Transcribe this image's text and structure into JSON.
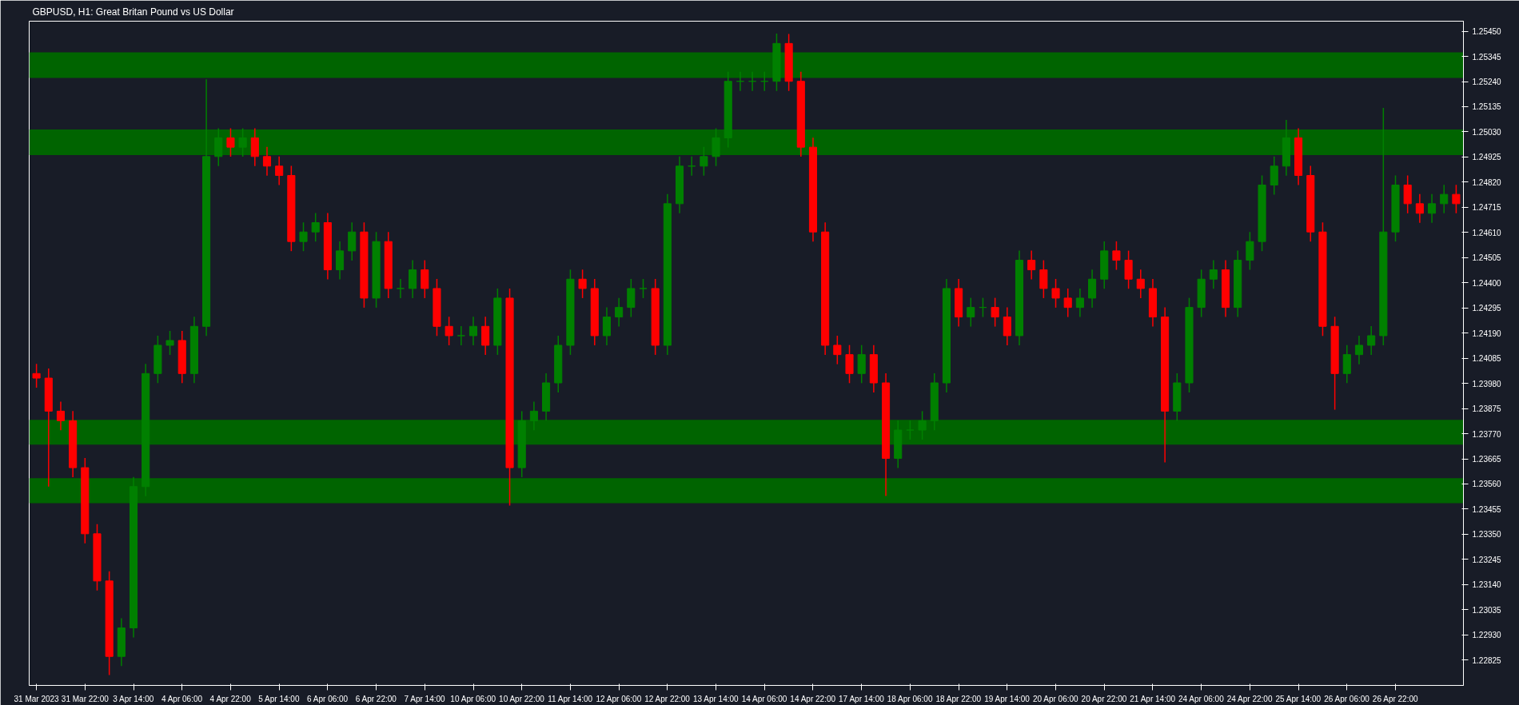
{
  "chart_data": {
    "type": "candlestick",
    "title": "GBPUSD, H1:  Great Britan Pound vs US Dollar",
    "categories": [
      "31 Mar 2023",
      null,
      null,
      null,
      "31 Mar 22:00",
      null,
      null,
      null,
      "3 Apr 14:00",
      null,
      null,
      null,
      "4 Apr 06:00",
      null,
      null,
      null,
      "4 Apr 22:00",
      null,
      null,
      null,
      "5 Apr 14:00",
      null,
      null,
      null,
      "6 Apr 06:00",
      null,
      null,
      null,
      "6 Apr 22:00",
      null,
      null,
      null,
      "7 Apr 14:00",
      null,
      null,
      null,
      "10 Apr 06:00",
      null,
      null,
      null,
      "10 Apr 22:00",
      null,
      null,
      null,
      "11 Apr 14:00",
      null,
      null,
      null,
      "12 Apr 06:00",
      null,
      null,
      null,
      "12 Apr 22:00",
      null,
      null,
      null,
      "13 Apr 14:00",
      null,
      null,
      null,
      "14 Apr 06:00",
      null,
      null,
      null,
      "14 Apr 22:00",
      null,
      null,
      null,
      "17 Apr 14:00",
      null,
      null,
      null,
      "18 Apr 06:00",
      null,
      null,
      null,
      "18 Apr 22:00",
      null,
      null,
      null,
      "19 Apr 14:00",
      null,
      null,
      null,
      "20 Apr 06:00",
      null,
      null,
      null,
      "20 Apr 22:00",
      null,
      null,
      null,
      "21 Apr 14:00",
      null,
      null,
      null,
      "24 Apr 06:00",
      null,
      null,
      null,
      "24 Apr 22:00",
      null,
      null,
      null,
      "25 Apr 14:00",
      null,
      null,
      null,
      "26 Apr 06:00",
      null,
      null,
      null,
      "26 Apr 22:00",
      null,
      null,
      null,
      null,
      null
    ],
    "ohlc": [
      [
        1.24021,
        1.24061,
        1.23962,
        1.24002
      ],
      [
        1.24002,
        1.24042,
        1.23549,
        1.23864
      ],
      [
        1.23864,
        1.23904,
        1.23784,
        1.23824
      ],
      [
        1.23824,
        1.23864,
        1.23588,
        1.23628
      ],
      [
        1.23628,
        1.23668,
        1.23312,
        1.23352
      ],
      [
        1.23352,
        1.23392,
        1.23115,
        1.23155
      ],
      [
        1.23155,
        1.23195,
        1.22762,
        1.2284
      ],
      [
        1.2284,
        1.22999,
        1.228,
        1.22959
      ],
      [
        1.22959,
        1.23589,
        1.22919,
        1.23549
      ],
      [
        1.23549,
        1.24061,
        1.23509,
        1.24021
      ],
      [
        1.24021,
        1.24179,
        1.23981,
        1.24139
      ],
      [
        1.24139,
        1.24199,
        1.24099,
        1.24159
      ],
      [
        1.24159,
        1.24199,
        1.23981,
        1.24021
      ],
      [
        1.24021,
        1.24258,
        1.23981,
        1.24218
      ],
      [
        1.24218,
        1.25249,
        1.24178,
        1.24927
      ],
      [
        1.24927,
        1.25045,
        1.24887,
        1.25005
      ],
      [
        1.25005,
        1.25045,
        1.24926,
        1.24966
      ],
      [
        1.24966,
        1.25045,
        1.24926,
        1.25005
      ],
      [
        1.25005,
        1.25045,
        1.24887,
        1.24927
      ],
      [
        1.24927,
        1.24967,
        1.24847,
        1.24887
      ],
      [
        1.24887,
        1.24927,
        1.24808,
        1.24848
      ],
      [
        1.24848,
        1.24888,
        1.24532,
        1.24572
      ],
      [
        1.24572,
        1.24652,
        1.24532,
        1.24612
      ],
      [
        1.24612,
        1.24691,
        1.24572,
        1.24651
      ],
      [
        1.24651,
        1.24691,
        1.24414,
        1.24454
      ],
      [
        1.24454,
        1.24573,
        1.24414,
        1.24533
      ],
      [
        1.24533,
        1.24652,
        1.24493,
        1.24612
      ],
      [
        1.24612,
        1.24652,
        1.24296,
        1.24336
      ],
      [
        1.24336,
        1.24612,
        1.24296,
        1.24572
      ],
      [
        1.24572,
        1.24612,
        1.24336,
        1.24376
      ],
      [
        1.24376,
        1.24416,
        1.24336,
        1.24376
      ],
      [
        1.24376,
        1.24494,
        1.24336,
        1.24454
      ],
      [
        1.24454,
        1.24494,
        1.24336,
        1.24376
      ],
      [
        1.24376,
        1.24416,
        1.24178,
        1.24218
      ],
      [
        1.24218,
        1.24258,
        1.24139,
        1.24179
      ],
      [
        1.24179,
        1.24219,
        1.24139,
        1.24179
      ],
      [
        1.24179,
        1.24258,
        1.24139,
        1.24218
      ],
      [
        1.24218,
        1.24258,
        1.24099,
        1.24139
      ],
      [
        1.24139,
        1.24376,
        1.24099,
        1.24336
      ],
      [
        1.24336,
        1.24376,
        1.2347,
        1.23628
      ],
      [
        1.23628,
        1.23864,
        1.23588,
        1.23824
      ],
      [
        1.23824,
        1.23904,
        1.23784,
        1.23864
      ],
      [
        1.23864,
        1.24022,
        1.23824,
        1.23982
      ],
      [
        1.23982,
        1.24179,
        1.23942,
        1.24139
      ],
      [
        1.24139,
        1.24455,
        1.24099,
        1.24415
      ],
      [
        1.24415,
        1.24455,
        1.24336,
        1.24376
      ],
      [
        1.24376,
        1.24416,
        1.24139,
        1.24179
      ],
      [
        1.24179,
        1.24297,
        1.24139,
        1.24257
      ],
      [
        1.24257,
        1.24337,
        1.24217,
        1.24297
      ],
      [
        1.24297,
        1.24416,
        1.24257,
        1.24376
      ],
      [
        1.24376,
        1.24416,
        1.24336,
        1.24376
      ],
      [
        1.24376,
        1.24416,
        1.24099,
        1.24139
      ],
      [
        1.24139,
        1.2477,
        1.24099,
        1.2473
      ],
      [
        1.2473,
        1.24927,
        1.2469,
        1.24887
      ],
      [
        1.24887,
        1.24927,
        1.24847,
        1.24887
      ],
      [
        1.24887,
        1.24967,
        1.24847,
        1.24927
      ],
      [
        1.24927,
        1.25045,
        1.24887,
        1.25005
      ],
      [
        1.25005,
        1.25281,
        1.24965,
        1.25241
      ],
      [
        1.25241,
        1.25281,
        1.25201,
        1.25241
      ],
      [
        1.25241,
        1.25281,
        1.25201,
        1.25241
      ],
      [
        1.25241,
        1.25281,
        1.25201,
        1.25241
      ],
      [
        1.25241,
        1.2544,
        1.25201,
        1.25399
      ],
      [
        1.25399,
        1.25439,
        1.25201,
        1.25241
      ],
      [
        1.25241,
        1.25281,
        1.24926,
        1.24966
      ],
      [
        1.24966,
        1.25006,
        1.24572,
        1.24612
      ],
      [
        1.24612,
        1.24652,
        1.24099,
        1.24139
      ],
      [
        1.24139,
        1.24179,
        1.2406,
        1.241
      ],
      [
        1.241,
        1.2414,
        1.23981,
        1.24021
      ],
      [
        1.24021,
        1.2414,
        1.23981,
        1.241
      ],
      [
        1.241,
        1.2414,
        1.23942,
        1.23982
      ],
      [
        1.23982,
        1.24022,
        1.2351,
        1.23667
      ],
      [
        1.23667,
        1.23825,
        1.23627,
        1.23785
      ],
      [
        1.23785,
        1.23825,
        1.23745,
        1.23785
      ],
      [
        1.23785,
        1.23864,
        1.23745,
        1.23824
      ],
      [
        1.23824,
        1.24022,
        1.23784,
        1.23982
      ],
      [
        1.23982,
        1.24416,
        1.23942,
        1.24376
      ],
      [
        1.24376,
        1.24416,
        1.24217,
        1.24257
      ],
      [
        1.24257,
        1.24337,
        1.24217,
        1.24297
      ],
      [
        1.24297,
        1.24337,
        1.24257,
        1.24297
      ],
      [
        1.24297,
        1.24337,
        1.24217,
        1.24257
      ],
      [
        1.24257,
        1.24297,
        1.24139,
        1.24179
      ],
      [
        1.24179,
        1.24534,
        1.24139,
        1.24494
      ],
      [
        1.24494,
        1.24534,
        1.24414,
        1.24454
      ],
      [
        1.24454,
        1.24494,
        1.24336,
        1.24376
      ],
      [
        1.24376,
        1.24416,
        1.24296,
        1.24336
      ],
      [
        1.24336,
        1.24376,
        1.24257,
        1.24297
      ],
      [
        1.24297,
        1.24376,
        1.24257,
        1.24336
      ],
      [
        1.24336,
        1.24455,
        1.24296,
        1.24415
      ],
      [
        1.24415,
        1.24573,
        1.24375,
        1.24533
      ],
      [
        1.24533,
        1.24573,
        1.24454,
        1.24494
      ],
      [
        1.24494,
        1.24534,
        1.24375,
        1.24415
      ],
      [
        1.24415,
        1.24455,
        1.24336,
        1.24376
      ],
      [
        1.24376,
        1.24416,
        1.24217,
        1.24257
      ],
      [
        1.24257,
        1.24297,
        1.2365,
        1.23864
      ],
      [
        1.23864,
        1.24022,
        1.23824,
        1.23982
      ],
      [
        1.23982,
        1.24337,
        1.23942,
        1.24297
      ],
      [
        1.24297,
        1.24455,
        1.24257,
        1.24415
      ],
      [
        1.24415,
        1.24494,
        1.24375,
        1.24454
      ],
      [
        1.24454,
        1.24494,
        1.24257,
        1.24297
      ],
      [
        1.24297,
        1.24534,
        1.24257,
        1.24494
      ],
      [
        1.24494,
        1.24612,
        1.24454,
        1.24572
      ],
      [
        1.24572,
        1.24848,
        1.24532,
        1.24808
      ],
      [
        1.24808,
        1.24927,
        1.24768,
        1.24887
      ],
      [
        1.24887,
        1.2508,
        1.24847,
        1.25005
      ],
      [
        1.25005,
        1.25045,
        1.24808,
        1.24848
      ],
      [
        1.24848,
        1.24888,
        1.24572,
        1.24612
      ],
      [
        1.24612,
        1.24652,
        1.24178,
        1.24218
      ],
      [
        1.24218,
        1.24258,
        1.2387,
        1.24021
      ],
      [
        1.24021,
        1.2414,
        1.23981,
        1.241
      ],
      [
        1.241,
        1.24179,
        1.2406,
        1.24139
      ],
      [
        1.24139,
        1.24219,
        1.24099,
        1.24179
      ],
      [
        1.24179,
        1.2513,
        1.24139,
        1.24612
      ],
      [
        1.24612,
        1.24848,
        1.24572,
        1.24808
      ],
      [
        1.24808,
        1.24848,
        1.2469,
        1.2473
      ],
      [
        1.2473,
        1.2477,
        1.2465,
        1.2469
      ],
      [
        1.2469,
        1.2477,
        1.2465,
        1.2473
      ],
      [
        1.2473,
        1.24809,
        1.2469,
        1.24769
      ],
      [
        1.24769,
        1.24809,
        1.2469,
        1.2473
      ]
    ],
    "colors": [
      "#ff0000",
      "#ff0000",
      "#ff0000",
      "#ff0000",
      "#ff0000",
      "#ff0000",
      "#ff0000",
      "#008000",
      "#008000",
      "#008000",
      "#008000",
      "#008000",
      "#ff0000",
      "#008000",
      "#008000",
      "#008000",
      "#ff0000",
      "#008000",
      "#ff0000",
      "#ff0000",
      "#ff0000",
      "#ff0000",
      "#008000",
      "#008000",
      "#ff0000",
      "#008000",
      "#008000",
      "#ff0000",
      "#008000",
      "#ff0000",
      "#008000",
      "#008000",
      "#ff0000",
      "#ff0000",
      "#ff0000",
      "#008000",
      "#008000",
      "#ff0000",
      "#008000",
      "#ff0000",
      "#008000",
      "#008000",
      "#008000",
      "#008000",
      "#008000",
      "#ff0000",
      "#ff0000",
      "#008000",
      "#008000",
      "#008000",
      "#008000",
      "#ff0000",
      "#008000",
      "#008000",
      "#008000",
      "#008000",
      "#008000",
      "#008000",
      "#008000",
      "#008000",
      "#008000",
      "#008000",
      "#ff0000",
      "#ff0000",
      "#ff0000",
      "#ff0000",
      "#ff0000",
      "#ff0000",
      "#008000",
      "#ff0000",
      "#ff0000",
      "#008000",
      "#008000",
      "#008000",
      "#008000",
      "#008000",
      "#ff0000",
      "#008000",
      "#008000",
      "#ff0000",
      "#ff0000",
      "#008000",
      "#ff0000",
      "#ff0000",
      "#ff0000",
      "#ff0000",
      "#008000",
      "#008000",
      "#008000",
      "#ff0000",
      "#ff0000",
      "#ff0000",
      "#ff0000",
      "#ff0000",
      "#008000",
      "#008000",
      "#008000",
      "#008000",
      "#ff0000",
      "#008000",
      "#008000",
      "#008000",
      "#008000",
      "#008000",
      "#ff0000",
      "#ff0000",
      "#ff0000",
      "#ff0000",
      "#008000",
      "#008000",
      "#008000",
      "#008000",
      "#008000",
      "#ff0000",
      "#ff0000",
      "#008000",
      "#008000",
      "#ff0000"
    ],
    "ylim": [
      1.22719,
      1.25492
    ],
    "yticks": [
      {
        "value": 1.2545,
        "label": "1.25450"
      },
      1.25345,
      {
        "value": 1.2524,
        "label": "1.25240"
      },
      1.25135,
      {
        "value": 1.2503,
        "label": "1.25030"
      },
      1.24925,
      {
        "value": 1.2482,
        "label": "1.24820"
      },
      1.24715,
      {
        "value": 1.2461,
        "label": "1.24610"
      },
      1.24505,
      {
        "value": 1.244,
        "label": "1.24400"
      },
      1.24295,
      {
        "value": 1.2419,
        "label": "1.24190"
      },
      1.24085,
      {
        "value": 1.2398,
        "label": "1.23980"
      },
      1.23875,
      {
        "value": 1.2377,
        "label": "1.23770"
      },
      1.23665,
      {
        "value": 1.2356,
        "label": "1.23560"
      },
      1.23455,
      {
        "value": 1.2335,
        "label": "1.23350"
      },
      1.23245,
      {
        "value": 1.2314,
        "label": "1.23140"
      },
      1.23035,
      {
        "value": 1.2293,
        "label": "1.22930"
      },
      1.22825
    ],
    "bands": [
      {
        "axis": "y",
        "from": 1.25255,
        "to": 1.25362,
        "color": "#006400"
      },
      {
        "axis": "y",
        "from": 1.24933,
        "to": 1.2504,
        "color": "#006400"
      },
      {
        "axis": "y",
        "from": 1.23724,
        "to": 1.23828,
        "color": "#006400"
      },
      {
        "axis": "y",
        "from": 1.2348,
        "to": 1.23584,
        "color": "#006400"
      }
    ],
    "grid": false
  }
}
